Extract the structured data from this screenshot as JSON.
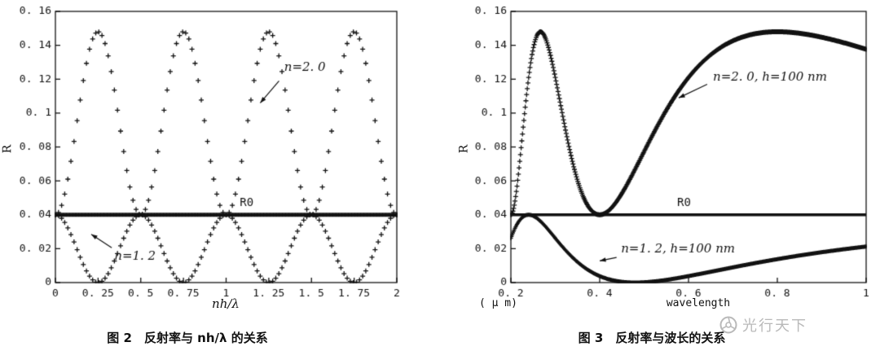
{
  "page": {
    "background": "#ffffff",
    "ink_color": "#111111",
    "watermark_color": "#a8a8a8"
  },
  "watermark": {
    "text": "光行天下",
    "logo_icon": "shutter-logo"
  },
  "chart_data": [
    {
      "type": "line",
      "title": "图 2　反射率与 nh/λ 的关系",
      "xlabel": "nh/λ",
      "ylabel": "R",
      "xlim": [
        0,
        2
      ],
      "ylim": [
        0,
        0.16
      ],
      "grid": false,
      "legend": "none (in-plot annotations)",
      "xticks": [
        0,
        0.25,
        0.5,
        0.75,
        1,
        1.25,
        1.5,
        1.75,
        2
      ],
      "xtick_labels": [
        "0",
        "0. 25",
        "0. 5",
        "0. 75",
        "1",
        "1. 25",
        "1. 5",
        "1. 75",
        "2"
      ],
      "yticks": [
        0,
        0.02,
        0.04,
        0.06,
        0.08,
        0.1,
        0.12,
        0.14,
        0.16
      ],
      "ytick_labels": [
        "0",
        "0. 02",
        "0. 04",
        "0. 06",
        "0. 08",
        "0. 1",
        "0. 12",
        "0. 14",
        "0. 16"
      ],
      "series": [
        {
          "name": "film n=2.0",
          "marker": "plus",
          "marker_size": 3,
          "samples": 110,
          "model": {
            "kind": "sin2",
            "phase": "linear",
            "k": 1,
            "base": 0.04,
            "amp": 0.108
          },
          "keypoints": {
            "maxima_x": [
              0.25,
              0.75,
              1.25,
              1.75
            ],
            "max_R": 0.148,
            "minima_x": [
              0,
              0.5,
              1,
              1.5,
              2
            ],
            "min_R": 0.04
          }
        },
        {
          "name": "uncoated substrate R0",
          "marker": "plus",
          "marker_size": 2.5,
          "samples": 310,
          "model": {
            "kind": "const",
            "value": 0.04
          },
          "keypoints": {
            "constant_R": 0.04
          }
        },
        {
          "name": "film n=1.2",
          "marker": "plus",
          "marker_size": 3,
          "samples": 110,
          "model": {
            "kind": "sin2",
            "phase": "linear",
            "k": 1,
            "base": 0.04,
            "amp": -0.04
          },
          "keypoints": {
            "minima_x": [
              0.25,
              0.75,
              1.25,
              1.75
            ],
            "min_R": 0,
            "maxima_x": [
              0,
              0.5,
              1,
              1.5,
              2
            ],
            "max_R": 0.04
          }
        }
      ],
      "annotations": [
        {
          "label": "n=2. 0",
          "math": true,
          "x": 1.34,
          "y": 0.127,
          "align": "left",
          "arrow": {
            "x1": 1.31,
            "y1": 0.119,
            "x2": 1.2,
            "y2": 0.106
          }
        },
        {
          "label": "R0",
          "math": false,
          "x": 1.12,
          "y": 0.047,
          "align": "center"
        },
        {
          "label": "n=1. 2",
          "math": true,
          "x": 0.345,
          "y": 0.0155,
          "align": "left",
          "arrow": {
            "x1": 0.33,
            "y1": 0.0205,
            "x2": 0.21,
            "y2": 0.0285
          }
        }
      ]
    },
    {
      "type": "line",
      "title": "图 3　反射率与波长的关系",
      "xlabel": "wavelength",
      "xlabel_unit": "( μ m)",
      "ylabel": "R",
      "xlim": [
        0.2,
        1
      ],
      "ylim": [
        0,
        0.16
      ],
      "grid": false,
      "legend": "none (in-plot annotations)",
      "xticks": [
        0.2,
        0.4,
        0.6,
        0.8,
        1
      ],
      "xtick_labels": [
        "0. 2",
        "0. 4",
        "0. 6",
        "0. 8",
        "1"
      ],
      "yticks": [
        0,
        0.02,
        0.04,
        0.06,
        0.08,
        0.1,
        0.12,
        0.14,
        0.16
      ],
      "ytick_labels": [
        "0",
        "0. 02",
        "0. 04",
        "0. 06",
        "0. 08",
        "0. 1",
        "0. 12",
        "0. 14",
        "0. 16"
      ],
      "series": [
        {
          "name": "n=2.0, h=100 nm",
          "marker": "plus",
          "marker_size": 3,
          "samples": 520,
          "model": {
            "kind": "sin2",
            "phase": "inverse",
            "k": 0.2,
            "base": 0.04,
            "amp": 0.108
          },
          "keypoints": {
            "start_R_at_0.2": 0.04,
            "peak1_x": 0.267,
            "peak_R": 0.148,
            "dip_x": 0.4,
            "dip_R": 0.04,
            "peak2_x": 0.8,
            "end_R_at_1": 0.138
          }
        },
        {
          "name": "uncoated substrate R0",
          "style": "line",
          "width": 3.5,
          "model": {
            "kind": "const",
            "value": 0.04
          },
          "keypoints": {
            "constant_R": 0.04
          }
        },
        {
          "name": "n=1.2, h=100 nm",
          "marker": "plus",
          "marker_size": 2.5,
          "samples": 520,
          "model": {
            "kind": "sin2",
            "phase": "inverse",
            "k": 0.12,
            "base": 0.04,
            "amp": -0.04
          },
          "keypoints": {
            "start_R_at_0.2": 0.026,
            "local_max_x": 0.24,
            "local_max_R": 0.04,
            "min_x": 0.48,
            "min_R": 0,
            "end_R_at_1": 0.021
          }
        }
      ],
      "annotations": [
        {
          "label": "n=2. 0, h=100 nm",
          "math": true,
          "x": 0.655,
          "y": 0.121,
          "align": "left",
          "arrow": {
            "x1": 0.642,
            "y1": 0.117,
            "x2": 0.578,
            "y2": 0.109
          }
        },
        {
          "label": "R0",
          "math": false,
          "x": 0.59,
          "y": 0.047,
          "align": "center"
        },
        {
          "label": "n=1. 2, h=100 nm",
          "math": true,
          "x": 0.448,
          "y": 0.0195,
          "align": "left",
          "arrow": {
            "x1": 0.438,
            "y1": 0.0148,
            "x2": 0.4,
            "y2": 0.0128
          }
        }
      ]
    }
  ]
}
